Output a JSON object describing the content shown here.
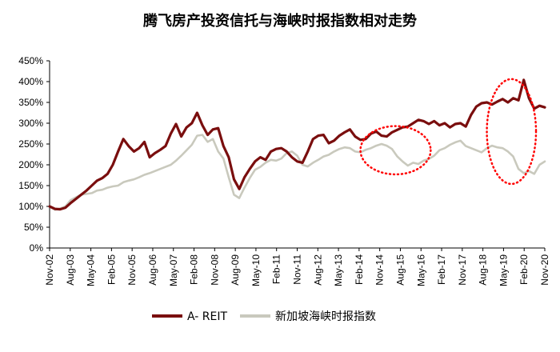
{
  "chart_data": {
    "type": "line",
    "title": "腾飞房产投资信托与海峡时报指数相对走势",
    "xlabel": "",
    "ylabel": "",
    "ylim": [
      0,
      450
    ],
    "grid": false,
    "legend_position": "bottom",
    "y_ticks": [
      "0%",
      "50%",
      "100%",
      "150%",
      "200%",
      "250%",
      "300%",
      "350%",
      "400%",
      "450%"
    ],
    "x_ticks": [
      "Nov-02",
      "Aug-03",
      "May-04",
      "Feb-05",
      "Nov-05",
      "Aug-06",
      "May-07",
      "Feb-08",
      "Nov-08",
      "Aug-09",
      "May-10",
      "Feb-11",
      "Nov-11",
      "Aug-12",
      "May-13",
      "Feb-14",
      "Nov-14",
      "Aug-15",
      "May-16",
      "Feb-17",
      "Nov-17",
      "Aug-18",
      "May-19",
      "Feb-20",
      "Nov-20"
    ],
    "x_index_start": 0,
    "x_index_end": 216,
    "series": [
      {
        "name": "A- REIT",
        "color": "#7a0e0e",
        "points": [
          [
            0,
            100
          ],
          [
            3,
            94
          ],
          [
            6,
            93
          ],
          [
            9,
            97
          ],
          [
            12,
            108
          ],
          [
            15,
            118
          ],
          [
            18,
            128
          ],
          [
            21,
            138
          ],
          [
            24,
            150
          ],
          [
            27,
            162
          ],
          [
            30,
            168
          ],
          [
            33,
            178
          ],
          [
            36,
            200
          ],
          [
            39,
            232
          ],
          [
            42,
            262
          ],
          [
            45,
            245
          ],
          [
            48,
            232
          ],
          [
            51,
            240
          ],
          [
            54,
            255
          ],
          [
            57,
            218
          ],
          [
            60,
            228
          ],
          [
            63,
            236
          ],
          [
            66,
            245
          ],
          [
            69,
            275
          ],
          [
            72,
            298
          ],
          [
            75,
            268
          ],
          [
            78,
            290
          ],
          [
            81,
            300
          ],
          [
            84,
            325
          ],
          [
            87,
            295
          ],
          [
            90,
            272
          ],
          [
            93,
            285
          ],
          [
            96,
            288
          ],
          [
            99,
            245
          ],
          [
            102,
            218
          ],
          [
            105,
            165
          ],
          [
            108,
            142
          ],
          [
            111,
            170
          ],
          [
            114,
            190
          ],
          [
            117,
            208
          ],
          [
            120,
            218
          ],
          [
            123,
            212
          ],
          [
            126,
            232
          ],
          [
            129,
            238
          ],
          [
            132,
            240
          ],
          [
            135,
            232
          ],
          [
            138,
            218
          ],
          [
            141,
            208
          ],
          [
            144,
            205
          ],
          [
            147,
            232
          ],
          [
            150,
            262
          ],
          [
            153,
            270
          ],
          [
            156,
            272
          ],
          [
            159,
            252
          ],
          [
            162,
            258
          ],
          [
            165,
            270
          ],
          [
            168,
            278
          ],
          [
            171,
            285
          ],
          [
            174,
            268
          ],
          [
            177,
            260
          ],
          [
            180,
            262
          ],
          [
            183,
            275
          ],
          [
            186,
            280
          ],
          [
            189,
            270
          ],
          [
            192,
            268
          ],
          [
            195,
            278
          ],
          [
            198,
            284
          ],
          [
            201,
            290
          ],
          [
            204,
            292
          ],
          [
            207,
            300
          ],
          [
            210,
            308
          ],
          [
            213,
            305
          ],
          [
            216,
            298
          ],
          [
            219,
            305
          ],
          [
            222,
            295
          ],
          [
            225,
            300
          ],
          [
            228,
            290
          ],
          [
            231,
            298
          ],
          [
            234,
            300
          ],
          [
            237,
            292
          ],
          [
            240,
            320
          ],
          [
            243,
            340
          ],
          [
            246,
            348
          ],
          [
            249,
            350
          ],
          [
            252,
            345
          ],
          [
            255,
            352
          ],
          [
            258,
            358
          ],
          [
            261,
            350
          ],
          [
            264,
            360
          ],
          [
            267,
            355
          ],
          [
            270,
            404
          ],
          [
            273,
            360
          ],
          [
            276,
            335
          ],
          [
            279,
            342
          ],
          [
            282,
            338
          ]
        ]
      },
      {
        "name": "新加坡海峡时报指数",
        "color": "#c9c9bd",
        "points": [
          [
            0,
            100
          ],
          [
            3,
            92
          ],
          [
            6,
            95
          ],
          [
            9,
            100
          ],
          [
            12,
            115
          ],
          [
            15,
            122
          ],
          [
            18,
            128
          ],
          [
            21,
            130
          ],
          [
            24,
            132
          ],
          [
            27,
            138
          ],
          [
            30,
            140
          ],
          [
            33,
            145
          ],
          [
            36,
            148
          ],
          [
            39,
            150
          ],
          [
            42,
            158
          ],
          [
            45,
            162
          ],
          [
            48,
            165
          ],
          [
            51,
            170
          ],
          [
            54,
            176
          ],
          [
            57,
            180
          ],
          [
            60,
            185
          ],
          [
            63,
            190
          ],
          [
            66,
            195
          ],
          [
            69,
            200
          ],
          [
            72,
            210
          ],
          [
            75,
            222
          ],
          [
            78,
            235
          ],
          [
            81,
            248
          ],
          [
            84,
            270
          ],
          [
            87,
            272
          ],
          [
            90,
            255
          ],
          [
            93,
            262
          ],
          [
            96,
            232
          ],
          [
            99,
            215
          ],
          [
            102,
            170
          ],
          [
            105,
            128
          ],
          [
            108,
            120
          ],
          [
            111,
            145
          ],
          [
            114,
            168
          ],
          [
            117,
            188
          ],
          [
            120,
            195
          ],
          [
            123,
            205
          ],
          [
            126,
            212
          ],
          [
            129,
            210
          ],
          [
            132,
            215
          ],
          [
            135,
            228
          ],
          [
            138,
            232
          ],
          [
            141,
            222
          ],
          [
            144,
            200
          ],
          [
            147,
            196
          ],
          [
            150,
            205
          ],
          [
            153,
            212
          ],
          [
            156,
            220
          ],
          [
            159,
            224
          ],
          [
            162,
            232
          ],
          [
            165,
            238
          ],
          [
            168,
            242
          ],
          [
            171,
            240
          ],
          [
            174,
            232
          ],
          [
            177,
            230
          ],
          [
            180,
            236
          ],
          [
            183,
            240
          ],
          [
            186,
            246
          ],
          [
            189,
            250
          ],
          [
            192,
            246
          ],
          [
            195,
            238
          ],
          [
            198,
            220
          ],
          [
            201,
            208
          ],
          [
            204,
            198
          ],
          [
            207,
            205
          ],
          [
            210,
            202
          ],
          [
            213,
            210
          ],
          [
            216,
            214
          ],
          [
            219,
            222
          ],
          [
            222,
            235
          ],
          [
            225,
            240
          ],
          [
            228,
            248
          ],
          [
            231,
            254
          ],
          [
            234,
            258
          ],
          [
            237,
            245
          ],
          [
            240,
            240
          ],
          [
            243,
            235
          ],
          [
            246,
            230
          ],
          [
            249,
            240
          ],
          [
            252,
            246
          ],
          [
            255,
            242
          ],
          [
            258,
            240
          ],
          [
            261,
            232
          ],
          [
            264,
            220
          ],
          [
            267,
            190
          ],
          [
            270,
            180
          ],
          [
            273,
            185
          ],
          [
            276,
            178
          ],
          [
            279,
            200
          ],
          [
            282,
            208
          ]
        ]
      }
    ],
    "annotations": [
      {
        "type": "dotted-ellipse",
        "color": "#ff0000",
        "x_center": 197,
        "y_center": 235,
        "x_radius": 20,
        "y_radius": 58
      },
      {
        "type": "dotted-ellipse",
        "color": "#ff0000",
        "x_center": 263,
        "y_center": 280,
        "x_radius": 14,
        "y_radius": 126
      }
    ]
  }
}
